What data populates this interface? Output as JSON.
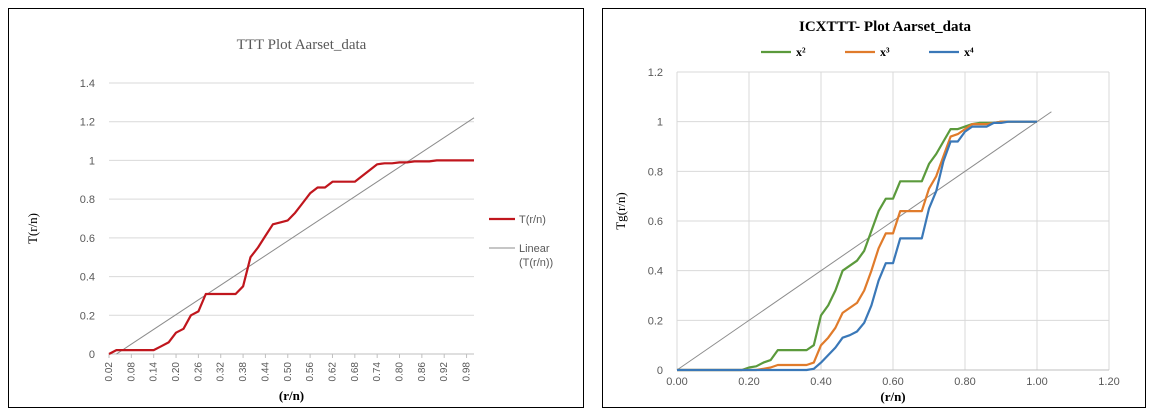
{
  "chart_data": [
    {
      "type": "line",
      "title": "TTT Plot Aarset_data",
      "xlabel": "(r/n)",
      "ylabel": "T(r/n)",
      "ylim": [
        0,
        1.4
      ],
      "yticks": [
        "0",
        "0.2",
        "0.4",
        "0.6",
        "0.8",
        "1",
        "1.2",
        "1.4"
      ],
      "xticks": [
        "0.02",
        "0.08",
        "0.14",
        "0.20",
        "0.26",
        "0.32",
        "0.38",
        "0.44",
        "0.50",
        "0.56",
        "0.62",
        "0.68",
        "0.74",
        "0.80",
        "0.86",
        "0.92",
        "0.98"
      ],
      "legend_position": "right",
      "grid": "horizontal",
      "colors": {
        "series": "#c0161d",
        "linear": "#8c8c8c"
      },
      "series": [
        {
          "name": "T(r/n)",
          "x": [
            0.02,
            0.04,
            0.06,
            0.1,
            0.14,
            0.16,
            0.18,
            0.2,
            0.22,
            0.24,
            0.26,
            0.28,
            0.3,
            0.36,
            0.38,
            0.4,
            0.42,
            0.44,
            0.46,
            0.48,
            0.5,
            0.52,
            0.54,
            0.56,
            0.58,
            0.6,
            0.62,
            0.66,
            0.68,
            0.7,
            0.72,
            0.74,
            0.76,
            0.78,
            0.8,
            0.82,
            0.84,
            0.86,
            0.88,
            0.9,
            0.92,
            0.96,
            0.98,
            1.0
          ],
          "y": [
            0,
            0.02,
            0.02,
            0.02,
            0.02,
            0.04,
            0.06,
            0.11,
            0.13,
            0.2,
            0.22,
            0.31,
            0.31,
            0.31,
            0.35,
            0.5,
            0.55,
            0.61,
            0.67,
            0.68,
            0.69,
            0.73,
            0.78,
            0.83,
            0.86,
            0.86,
            0.89,
            0.89,
            0.89,
            0.92,
            0.95,
            0.98,
            0.985,
            0.985,
            0.99,
            0.99,
            0.995,
            0.995,
            0.995,
            1.0,
            1.0,
            1.0,
            1.0,
            1.0
          ]
        }
      ],
      "legend": [
        "T(r/n)",
        "Linear",
        "(T(r/n))"
      ]
    },
    {
      "type": "line",
      "title": "ICXTTT- Plot Aarset_data",
      "xlabel": "(r/n)",
      "ylabel": "Tg(r/n)",
      "xlim": [
        0,
        1.2
      ],
      "ylim": [
        0,
        1.2
      ],
      "xticks": [
        "0.00",
        "0.20",
        "0.40",
        "0.60",
        "0.80",
        "1.00",
        "1.20"
      ],
      "yticks": [
        "0",
        "0.2",
        "0.4",
        "0.6",
        "0.8",
        "1",
        "1.2"
      ],
      "legend_position": "top",
      "grid": "both",
      "series": [
        {
          "name": "x²",
          "color": "#5b9a3c",
          "x": [
            0,
            0.18,
            0.2,
            0.22,
            0.24,
            0.26,
            0.28,
            0.3,
            0.36,
            0.38,
            0.4,
            0.42,
            0.44,
            0.46,
            0.48,
            0.5,
            0.52,
            0.54,
            0.56,
            0.58,
            0.6,
            0.62,
            0.66,
            0.68,
            0.7,
            0.72,
            0.74,
            0.76,
            0.78,
            0.8,
            0.82,
            0.84,
            0.86,
            0.88,
            0.9,
            0.92,
            0.96,
            1.0
          ],
          "y": [
            0,
            0,
            0.01,
            0.015,
            0.03,
            0.04,
            0.08,
            0.08,
            0.08,
            0.1,
            0.22,
            0.26,
            0.32,
            0.4,
            0.42,
            0.44,
            0.48,
            0.56,
            0.64,
            0.69,
            0.69,
            0.76,
            0.76,
            0.76,
            0.83,
            0.87,
            0.92,
            0.97,
            0.97,
            0.98,
            0.99,
            0.995,
            0.995,
            0.995,
            1.0,
            1.0,
            1.0,
            1.0
          ]
        },
        {
          "name": "x³",
          "color": "#e07b2b",
          "x": [
            0,
            0.22,
            0.24,
            0.26,
            0.28,
            0.3,
            0.36,
            0.38,
            0.4,
            0.42,
            0.44,
            0.46,
            0.48,
            0.5,
            0.52,
            0.54,
            0.56,
            0.58,
            0.6,
            0.62,
            0.66,
            0.68,
            0.7,
            0.72,
            0.74,
            0.76,
            0.78,
            0.8,
            0.82,
            0.84,
            0.86,
            0.88,
            0.9,
            0.92,
            0.96,
            1.0
          ],
          "y": [
            0,
            0,
            0.005,
            0.01,
            0.02,
            0.02,
            0.02,
            0.03,
            0.1,
            0.13,
            0.17,
            0.23,
            0.25,
            0.27,
            0.32,
            0.4,
            0.49,
            0.55,
            0.55,
            0.64,
            0.64,
            0.64,
            0.73,
            0.78,
            0.86,
            0.94,
            0.95,
            0.97,
            0.99,
            0.99,
            0.99,
            0.995,
            1.0,
            1.0,
            1.0,
            1.0
          ]
        },
        {
          "name": "x⁴",
          "color": "#3a78b8",
          "x": [
            0,
            0.3,
            0.36,
            0.38,
            0.4,
            0.42,
            0.44,
            0.46,
            0.48,
            0.5,
            0.52,
            0.54,
            0.56,
            0.58,
            0.6,
            0.62,
            0.66,
            0.68,
            0.7,
            0.72,
            0.74,
            0.76,
            0.78,
            0.8,
            0.82,
            0.84,
            0.86,
            0.88,
            0.9,
            0.92,
            0.96,
            1.0
          ],
          "y": [
            0,
            0,
            0,
            0.005,
            0.03,
            0.06,
            0.09,
            0.13,
            0.14,
            0.155,
            0.19,
            0.26,
            0.36,
            0.43,
            0.43,
            0.53,
            0.53,
            0.53,
            0.65,
            0.72,
            0.84,
            0.92,
            0.92,
            0.96,
            0.98,
            0.98,
            0.98,
            0.995,
            0.995,
            1.0,
            1.0,
            1.0
          ]
        }
      ],
      "reference_line": {
        "x": [
          0,
          1.04
        ],
        "y": [
          0,
          1.04
        ],
        "color": "#8c8c8c"
      }
    }
  ]
}
